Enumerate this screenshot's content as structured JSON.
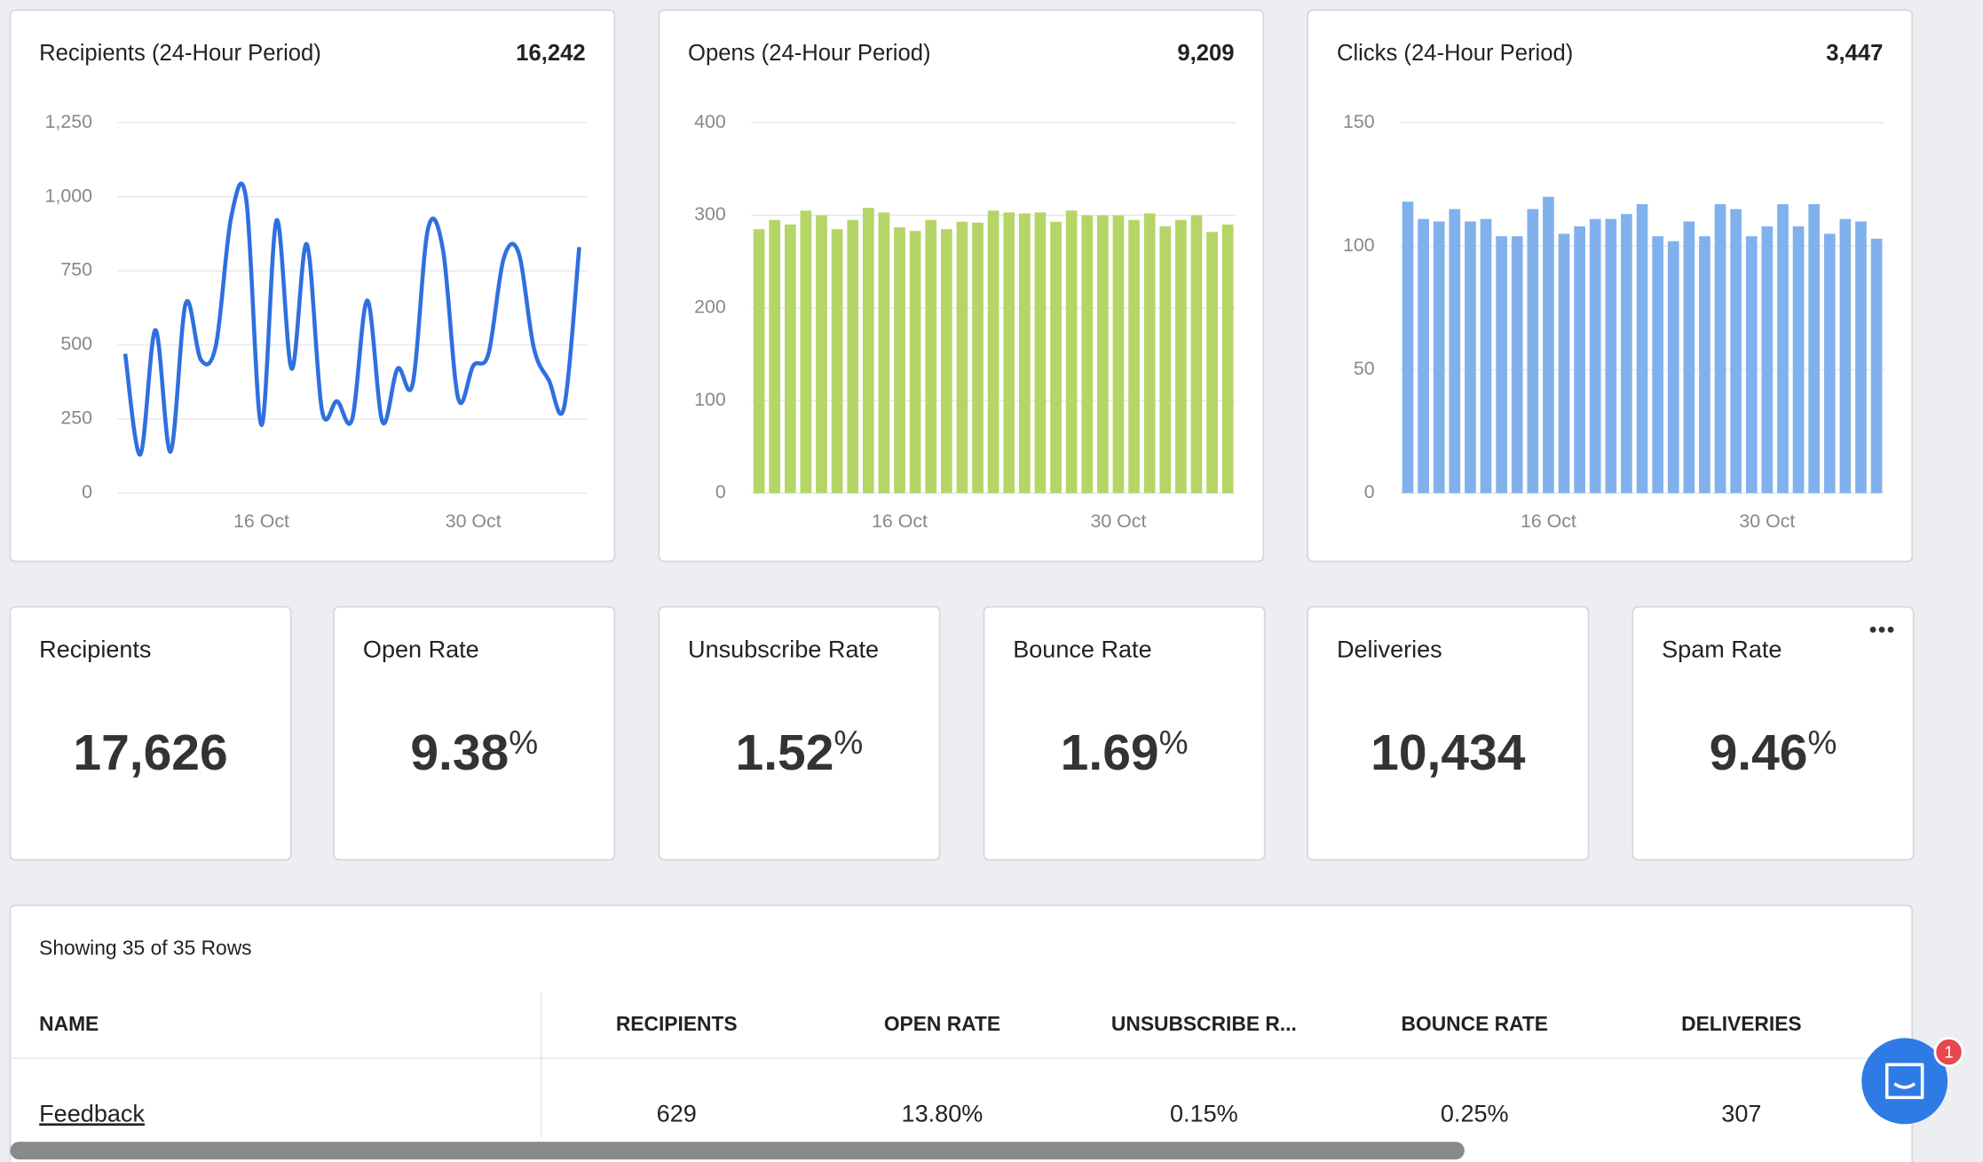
{
  "chart_data": [
    {
      "type": "line",
      "title": "Recipients (24-Hour Period)",
      "total": "16,242",
      "color": "#2f6fe0",
      "categories": [
        null,
        null,
        null,
        null,
        null,
        null,
        null,
        null,
        null,
        "16 Oct",
        null,
        null,
        null,
        null,
        null,
        null,
        null,
        null,
        null,
        null,
        null,
        null,
        null,
        "30 Oct",
        null,
        null,
        null,
        null,
        null,
        null,
        null
      ],
      "values": [
        470,
        130,
        550,
        140,
        640,
        450,
        500,
        930,
        990,
        230,
        920,
        420,
        840,
        280,
        310,
        250,
        650,
        240,
        420,
        370,
        890,
        820,
        320,
        430,
        470,
        790,
        810,
        490,
        380,
        290,
        830
      ],
      "ylim": [
        0,
        1250
      ],
      "yticks": [
        0,
        250,
        500,
        750,
        {
          "value": 1000,
          "label": "1,000"
        },
        {
          "value": 1250,
          "label": "1,250"
        }
      ],
      "grid": true
    },
    {
      "type": "bar",
      "title": "Opens (24-Hour Period)",
      "total": "9,209",
      "color": "#b5d566",
      "categories": [
        null,
        null,
        null,
        null,
        null,
        null,
        null,
        null,
        null,
        "16 Oct",
        null,
        null,
        null,
        null,
        null,
        null,
        null,
        null,
        null,
        null,
        null,
        null,
        null,
        "30 Oct",
        null,
        null,
        null,
        null,
        null,
        null,
        null
      ],
      "values": [
        285,
        295,
        290,
        305,
        300,
        285,
        295,
        308,
        303,
        287,
        283,
        295,
        285,
        293,
        292,
        305,
        303,
        302,
        303,
        293,
        305,
        300,
        300,
        300,
        295,
        302,
        288,
        295,
        300,
        282,
        290
      ],
      "ylim": [
        0,
        400
      ],
      "yticks": [
        0,
        100,
        200,
        300,
        400
      ],
      "grid": true
    },
    {
      "type": "bar",
      "title": "Clicks (24-Hour Period)",
      "total": "3,447",
      "color": "#80b1ec",
      "categories": [
        null,
        null,
        null,
        null,
        null,
        null,
        null,
        null,
        null,
        "16 Oct",
        null,
        null,
        null,
        null,
        null,
        null,
        null,
        null,
        null,
        null,
        null,
        null,
        null,
        "30 Oct",
        null,
        null,
        null,
        null,
        null,
        null,
        null
      ],
      "values": [
        118,
        111,
        110,
        115,
        110,
        111,
        104,
        104,
        115,
        120,
        105,
        108,
        111,
        111,
        113,
        117,
        104,
        102,
        110,
        104,
        117,
        115,
        104,
        108,
        117,
        108,
        117,
        105,
        111,
        110,
        103
      ],
      "ylim": [
        0,
        150
      ],
      "yticks": [
        0,
        50,
        100,
        150
      ],
      "grid": true
    }
  ],
  "stats": [
    {
      "label": "Recipients",
      "value": "17,626"
    },
    {
      "label": "Open Rate",
      "value": "9.38",
      "unit": "%"
    },
    {
      "label": "Unsubscribe Rate",
      "value": "1.52",
      "unit": "%"
    },
    {
      "label": "Bounce Rate",
      "value": "1.69",
      "unit": "%"
    },
    {
      "label": "Deliveries",
      "value": "10,434"
    },
    {
      "label": "Spam Rate",
      "value": "9.46",
      "unit": "%"
    }
  ],
  "table": {
    "caption": "Showing 35 of 35 Rows",
    "columns": [
      "NAME",
      "RECIPIENTS",
      "OPEN RATE",
      "UNSUBSCRIBE R...",
      "BOUNCE RATE",
      "DELIVERIES"
    ],
    "rows": [
      [
        "Feedback",
        "629",
        "13.80%",
        "0.15%",
        "0.25%",
        "307"
      ]
    ]
  },
  "chat_badge": "1"
}
